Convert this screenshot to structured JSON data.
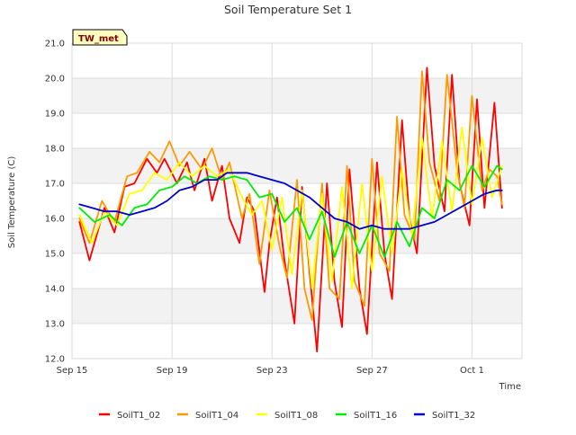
{
  "chart_data": {
    "type": "line",
    "title": "Soil Temperature Set 1",
    "xlabel": "Time",
    "ylabel": "Soil Temperature (C)",
    "site_label": "TW_met",
    "x_unit": "days since Sep 15",
    "xlim": [
      0,
      18
    ],
    "ylim": [
      12.0,
      21.0
    ],
    "x_ticks": [
      {
        "value": 0,
        "label": "Sep 15"
      },
      {
        "value": 4,
        "label": "Sep 19"
      },
      {
        "value": 8,
        "label": "Sep 23"
      },
      {
        "value": 12,
        "label": "Sep 27"
      },
      {
        "value": 16,
        "label": "Oct 1"
      }
    ],
    "y_ticks": [
      {
        "value": 12,
        "label": "12.0"
      },
      {
        "value": 13,
        "label": "13.0"
      },
      {
        "value": 14,
        "label": "14.0"
      },
      {
        "value": 15,
        "label": "15.0"
      },
      {
        "value": 16,
        "label": "16.0"
      },
      {
        "value": 17,
        "label": "17.0"
      },
      {
        "value": 18,
        "label": "18.0"
      },
      {
        "value": 19,
        "label": "19.0"
      },
      {
        "value": 20,
        "label": "20.0"
      },
      {
        "value": 21,
        "label": "21.0"
      }
    ],
    "grid": true,
    "legend_position": "bottom",
    "series": [
      {
        "name": "SoilT1_02",
        "color": "#ff0000",
        "x": [
          0.3,
          0.7,
          1.3,
          1.7,
          2.1,
          2.5,
          3.0,
          3.4,
          3.7,
          4.2,
          4.6,
          4.9,
          5.3,
          5.6,
          6.0,
          6.3,
          6.7,
          7.0,
          7.3,
          7.7,
          7.9,
          8.2,
          8.5,
          8.9,
          9.2,
          9.5,
          9.8,
          10.2,
          10.5,
          10.8,
          11.1,
          11.5,
          11.8,
          12.2,
          12.5,
          12.8,
          13.2,
          13.5,
          13.8,
          14.2,
          14.5,
          14.9,
          15.2,
          15.5,
          15.9,
          16.2,
          16.5,
          16.9,
          17.2
        ],
        "y": [
          15.9,
          14.8,
          16.3,
          15.6,
          16.9,
          17.0,
          17.7,
          17.3,
          17.7,
          17.0,
          17.6,
          16.8,
          17.7,
          16.5,
          17.5,
          16.0,
          15.3,
          16.6,
          16.2,
          13.9,
          15.3,
          16.6,
          14.8,
          13.0,
          16.9,
          14.5,
          12.2,
          17.0,
          14.2,
          12.9,
          17.4,
          14.0,
          12.7,
          17.6,
          15.0,
          13.7,
          18.8,
          16.0,
          15.0,
          20.3,
          17.5,
          16.2,
          20.1,
          17.0,
          15.8,
          19.4,
          16.3,
          19.3,
          16.3
        ]
      },
      {
        "name": "SoilT1_04",
        "color": "#ff9900",
        "x": [
          0.3,
          0.7,
          1.2,
          1.7,
          2.2,
          2.6,
          3.1,
          3.5,
          3.9,
          4.3,
          4.7,
          5.2,
          5.6,
          6.0,
          6.3,
          6.8,
          7.1,
          7.5,
          7.9,
          8.3,
          8.6,
          9.0,
          9.3,
          9.6,
          10.0,
          10.3,
          10.7,
          11.0,
          11.3,
          11.7,
          12.0,
          12.3,
          12.7,
          13.0,
          13.3,
          13.7,
          14.0,
          14.3,
          14.7,
          15.0,
          15.4,
          15.7,
          16.0,
          16.4,
          16.7,
          17.0,
          17.2
        ],
        "y": [
          16.0,
          15.3,
          16.5,
          15.9,
          17.2,
          17.3,
          17.9,
          17.6,
          18.2,
          17.5,
          17.9,
          17.4,
          18.0,
          17.1,
          17.6,
          16.0,
          16.7,
          14.7,
          16.8,
          15.2,
          14.3,
          17.1,
          14.0,
          13.1,
          17.0,
          14.0,
          13.7,
          17.5,
          14.2,
          13.5,
          17.7,
          15.0,
          14.5,
          18.9,
          16.1,
          15.4,
          20.2,
          17.6,
          16.5,
          20.1,
          17.4,
          16.3,
          19.5,
          16.8,
          17.4,
          17.2,
          16.4
        ]
      },
      {
        "name": "SoilT1_08",
        "color": "#ffff00",
        "x": [
          0.3,
          0.8,
          1.3,
          1.8,
          2.3,
          2.8,
          3.3,
          3.8,
          4.3,
          4.8,
          5.3,
          5.8,
          6.3,
          6.8,
          7.2,
          7.6,
          8.0,
          8.4,
          8.8,
          9.2,
          9.6,
          10.0,
          10.4,
          10.8,
          11.2,
          11.6,
          12.0,
          12.4,
          12.8,
          13.2,
          13.6,
          14.0,
          14.4,
          14.8,
          15.2,
          15.6,
          16.0,
          16.4,
          16.8,
          17.2
        ],
        "y": [
          16.1,
          15.3,
          16.2,
          15.8,
          16.7,
          16.8,
          17.3,
          17.1,
          17.6,
          17.2,
          17.5,
          17.2,
          17.4,
          16.6,
          16.1,
          16.5,
          15.1,
          16.6,
          14.4,
          16.8,
          14.0,
          16.7,
          14.2,
          16.9,
          14.0,
          17.0,
          14.5,
          17.2,
          15.0,
          17.4,
          15.5,
          18.3,
          16.0,
          18.2,
          16.2,
          18.6,
          16.4,
          18.3,
          16.6,
          17.5
        ]
      },
      {
        "name": "SoilT1_16",
        "color": "#00ee00",
        "x": [
          0.3,
          0.9,
          1.5,
          2.0,
          2.5,
          3.0,
          3.5,
          4.0,
          4.5,
          5.0,
          5.5,
          6.0,
          6.5,
          7.0,
          7.5,
          8.0,
          8.5,
          9.0,
          9.5,
          10.0,
          10.5,
          11.0,
          11.5,
          12.0,
          12.5,
          13.0,
          13.5,
          14.0,
          14.5,
          15.0,
          15.5,
          16.0,
          16.5,
          17.0,
          17.2
        ],
        "y": [
          16.3,
          15.9,
          16.1,
          15.8,
          16.3,
          16.4,
          16.8,
          16.9,
          17.2,
          17.0,
          17.2,
          17.1,
          17.2,
          17.1,
          16.6,
          16.7,
          15.9,
          16.3,
          15.4,
          16.2,
          14.9,
          15.9,
          15.0,
          15.8,
          14.9,
          15.9,
          15.2,
          16.3,
          16.0,
          17.1,
          16.8,
          17.5,
          16.9,
          17.5,
          17.4
        ]
      },
      {
        "name": "SoilT1_32",
        "color": "#0000cc",
        "x": [
          0.3,
          0.8,
          1.3,
          1.8,
          2.3,
          2.8,
          3.3,
          3.8,
          4.3,
          4.8,
          5.3,
          5.8,
          6.2,
          6.6,
          7.0,
          7.5,
          8.0,
          8.5,
          9.0,
          9.5,
          10.0,
          10.5,
          11.0,
          11.5,
          12.0,
          12.5,
          13.0,
          13.5,
          14.0,
          14.5,
          15.0,
          15.5,
          16.0,
          16.5,
          17.0,
          17.2
        ],
        "y": [
          16.4,
          16.3,
          16.2,
          16.2,
          16.1,
          16.2,
          16.3,
          16.5,
          16.8,
          16.9,
          17.1,
          17.1,
          17.3,
          17.3,
          17.3,
          17.2,
          17.1,
          17.0,
          16.8,
          16.6,
          16.3,
          16.0,
          15.9,
          15.7,
          15.8,
          15.7,
          15.7,
          15.7,
          15.8,
          15.9,
          16.1,
          16.3,
          16.5,
          16.7,
          16.8,
          16.8
        ]
      }
    ]
  }
}
